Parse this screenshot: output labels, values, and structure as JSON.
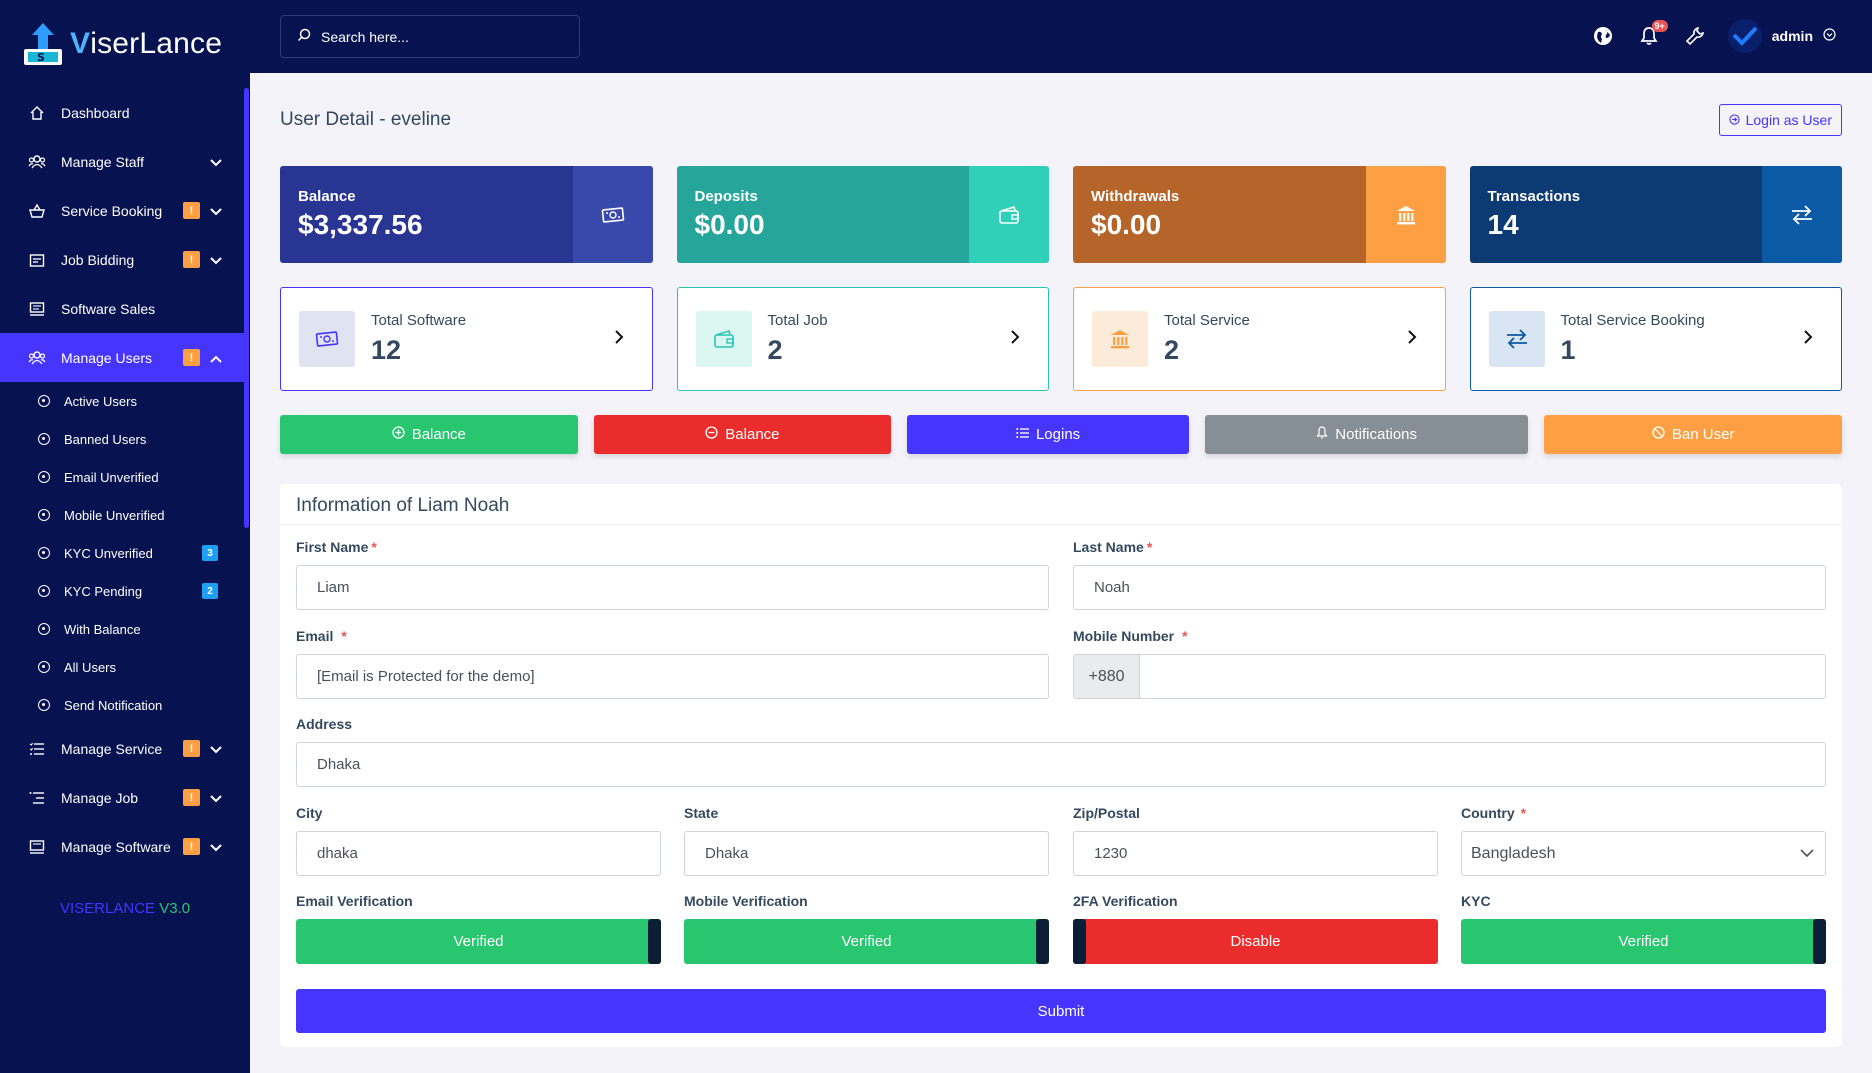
{
  "brand": {
    "v": "V",
    "rest": "iserLance"
  },
  "version": {
    "name": "VISERLANCE",
    "num": "V3.0"
  },
  "search": {
    "placeholder": "Search here..."
  },
  "topbar": {
    "notif_count": "9+",
    "admin_name": "admin"
  },
  "sidebar": {
    "items_before": [
      {
        "label": "Dashboard",
        "icon": "home-icon"
      },
      {
        "label": "Manage Staff",
        "icon": "staff-icon",
        "chev": true
      },
      {
        "label": "Service Booking",
        "icon": "booking-icon",
        "warn": "!",
        "chev": true
      },
      {
        "label": "Job Bidding",
        "icon": "job-bid-icon",
        "warn": "!",
        "chev": true
      },
      {
        "label": "Software Sales",
        "icon": "software-icon"
      }
    ],
    "active": {
      "label": "Manage Users",
      "warn": "!"
    },
    "sub_items": [
      {
        "label": "Active Users"
      },
      {
        "label": "Banned Users"
      },
      {
        "label": "Email Unverified"
      },
      {
        "label": "Mobile Unverified"
      },
      {
        "label": "KYC Unverified",
        "count": "3"
      },
      {
        "label": "KYC Pending",
        "count": "2"
      },
      {
        "label": "With Balance"
      },
      {
        "label": "All Users"
      },
      {
        "label": "Send Notification"
      }
    ],
    "items_after": [
      {
        "label": "Manage Service",
        "warn": "!"
      },
      {
        "label": "Manage Job",
        "warn": "!"
      },
      {
        "label": "Manage Software",
        "warn": "!"
      }
    ]
  },
  "page": {
    "title": "User Detail - eveline",
    "login_as_user": "Login as User"
  },
  "stats": [
    {
      "label": "Balance",
      "value": "$3,337.56",
      "bg": "#283593",
      "icon_bg": "#3949ab",
      "icon": "money-icon"
    },
    {
      "label": "Deposits",
      "value": "$0.00",
      "bg": "#26a69a",
      "icon_bg": "#2fd0b7",
      "icon": "wallet-icon"
    },
    {
      "label": "Withdrawals",
      "value": "$0.00",
      "bg": "#b5652a",
      "icon_bg": "#ff9f43",
      "icon": "bank-icon"
    },
    {
      "label": "Transactions",
      "value": "14",
      "bg": "#0d3a73",
      "icon_bg": "#0b5aa5",
      "icon": "exchange-icon"
    }
  ],
  "widgets": [
    {
      "label": "Total Software",
      "value": "12",
      "color": "#4634ff",
      "icon_bg": "#e0e3f1",
      "icon": "money-icon"
    },
    {
      "label": "Total Job",
      "value": "2",
      "color": "#28c7b2",
      "icon_bg": "#dcf6f1",
      "icon": "wallet-icon"
    },
    {
      "label": "Total Service",
      "value": "2",
      "color": "#ff9f43",
      "icon_bg": "#fdebd9",
      "icon": "bank-icon"
    },
    {
      "label": "Total Service Booking",
      "value": "1",
      "color": "#0b5aa5",
      "icon_bg": "#d9e5f2",
      "icon": "exchange-icon"
    }
  ],
  "actions": [
    {
      "label": "Balance",
      "bg": "#28c76f",
      "icon": "plus-circle-icon"
    },
    {
      "label": "Balance",
      "bg": "#ea2c2c",
      "icon": "minus-circle-icon"
    },
    {
      "label": "Logins",
      "bg": "#4634ff",
      "icon": "list-icon"
    },
    {
      "label": "Notifications",
      "bg": "#868e96",
      "icon": "bell-icon"
    },
    {
      "label": "Ban User",
      "bg": "#ff9f43",
      "icon": "ban-icon"
    }
  ],
  "info": {
    "title": "Information of Liam Noah",
    "first_name_label": "First Name",
    "first_name": "Liam",
    "last_name_label": "Last Name",
    "last_name": "Noah",
    "email_label": "Email",
    "email": "[Email is Protected for the demo]",
    "mobile_label": "Mobile Number",
    "mobile_prefix": "+880",
    "mobile": "",
    "address_label": "Address",
    "address": "Dhaka",
    "city_label": "City",
    "city": "dhaka",
    "state_label": "State",
    "state": "Dhaka",
    "zip_label": "Zip/Postal",
    "zip": "1230",
    "country_label": "Country",
    "country": "Bangladesh",
    "ev_label": "Email Verification",
    "ev": "Verified",
    "mv_label": "Mobile Verification",
    "mv": "Verified",
    "tfa_label": "2FA Verification",
    "tfa": "Disable",
    "kyc_label": "KYC",
    "kyc": "Verified",
    "submit": "Submit"
  }
}
